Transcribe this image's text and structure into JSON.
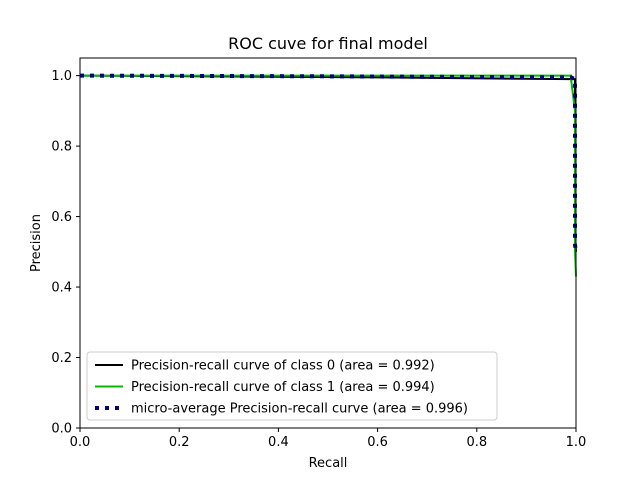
{
  "chart_data": {
    "type": "line",
    "title": "ROC cuve for final model",
    "xlabel": "Recall",
    "ylabel": "Precision",
    "xlim": [
      0.0,
      1.0
    ],
    "ylim": [
      0.0,
      1.05
    ],
    "xticks": [
      0.0,
      0.2,
      0.4,
      0.6,
      0.8,
      1.0
    ],
    "yticks": [
      0.0,
      0.2,
      0.4,
      0.6,
      0.8,
      1.0
    ],
    "grid": false,
    "legend_position": "lower-left",
    "series": [
      {
        "name": "Precision-recall curve of class 0 (area = 0.992)",
        "color": "#000000",
        "style": "solid",
        "x": [
          0.0,
          0.6,
          0.99,
          0.998,
          0.998,
          1.0
        ],
        "y": [
          1.0,
          0.995,
          0.99,
          0.99,
          0.55,
          0.5
        ]
      },
      {
        "name": "Precision-recall curve of class 1 (area = 0.994)",
        "color": "#00bb00",
        "style": "solid",
        "x": [
          0.0,
          0.99,
          0.99,
          0.998,
          0.998,
          1.0
        ],
        "y": [
          1.0,
          1.0,
          0.99,
          0.9,
          0.5,
          0.43
        ]
      },
      {
        "name": "micro-average Precision-recall curve (area = 0.996)",
        "color": "#000080",
        "style": "dotted",
        "x": [
          0.0,
          0.5,
          0.99,
          0.998,
          0.998,
          1.0
        ],
        "y": [
          1.0,
          0.998,
          0.995,
          0.99,
          0.52,
          0.5
        ]
      }
    ]
  }
}
